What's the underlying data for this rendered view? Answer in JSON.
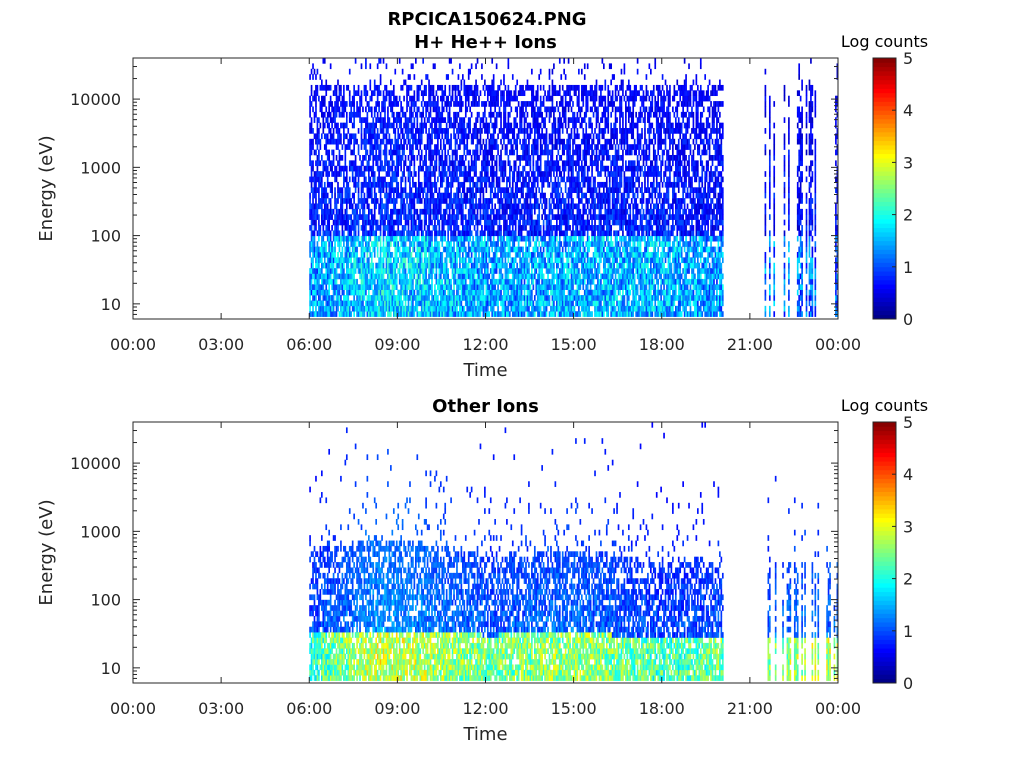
{
  "figure": {
    "title_line1": "RPCICA150624.PNG"
  },
  "chart_data": [
    {
      "type": "heatmap",
      "title": "H+ He++ Ions",
      "xlabel": "Time",
      "ylabel": "Energy (eV)",
      "x_ticks": [
        "00:00",
        "03:00",
        "06:00",
        "09:00",
        "12:00",
        "15:00",
        "18:00",
        "21:00",
        "00:00"
      ],
      "x_range_hours": [
        0,
        24
      ],
      "y_scale": "log",
      "y_range": [
        6,
        40000
      ],
      "y_ticks": [
        10,
        100,
        1000,
        10000
      ],
      "y_tick_labels": [
        "10",
        "100",
        "1000",
        "10000"
      ],
      "colorbar": {
        "label": "Log counts",
        "min": 0,
        "max": 5,
        "ticks": [
          "0",
          "1",
          "2",
          "3",
          "4",
          "5"
        ],
        "colormap": "jet"
      },
      "data_coverage_hours": [
        [
          6.0,
          20.1
        ],
        [
          21.5,
          24.0
        ]
      ],
      "energy_envelope": [
        {
          "hour": 6,
          "max_eV": 15000,
          "low_level": 1.2,
          "high_level": 0.4
        },
        {
          "hour": 8.5,
          "max_eV": 15000,
          "low_level": 1.6,
          "high_level": 0.5
        },
        {
          "hour": 12,
          "max_eV": 15000,
          "low_level": 1.3,
          "high_level": 0.4
        },
        {
          "hour": 18,
          "max_eV": 15000,
          "low_level": 1.4,
          "high_level": 0.4
        },
        {
          "hour": 23,
          "max_eV": 15000,
          "low_level": 1.0,
          "high_level": 0.3
        }
      ]
    },
    {
      "type": "heatmap",
      "title": "Other Ions",
      "xlabel": "Time",
      "ylabel": "Energy (eV)",
      "x_ticks": [
        "00:00",
        "03:00",
        "06:00",
        "09:00",
        "12:00",
        "15:00",
        "18:00",
        "21:00",
        "00:00"
      ],
      "x_range_hours": [
        0,
        24
      ],
      "y_scale": "log",
      "y_range": [
        6,
        40000
      ],
      "y_ticks": [
        10,
        100,
        1000,
        10000
      ],
      "y_tick_labels": [
        "10",
        "100",
        "1000",
        "10000"
      ],
      "colorbar": {
        "label": "Log counts",
        "min": 0,
        "max": 5,
        "ticks": [
          "0",
          "1",
          "2",
          "3",
          "4",
          "5"
        ],
        "colormap": "jet"
      },
      "data_coverage_hours": [
        [
          6.0,
          20.1
        ],
        [
          21.5,
          24.0
        ]
      ],
      "energy_envelope": [
        {
          "hour": 6,
          "max_eV": 500,
          "low_level": 2.0,
          "high_level": 0.6
        },
        {
          "hour": 8.5,
          "max_eV": 700,
          "low_level": 2.8,
          "high_level": 1.0
        },
        {
          "hour": 12,
          "max_eV": 400,
          "low_level": 2.3,
          "high_level": 0.7
        },
        {
          "hour": 15,
          "max_eV": 500,
          "low_level": 2.5,
          "high_level": 0.8
        },
        {
          "hour": 18,
          "max_eV": 300,
          "low_level": 2.1,
          "high_level": 0.6
        },
        {
          "hour": 23,
          "max_eV": 300,
          "low_level": 2.6,
          "high_level": 0.8
        }
      ]
    }
  ]
}
